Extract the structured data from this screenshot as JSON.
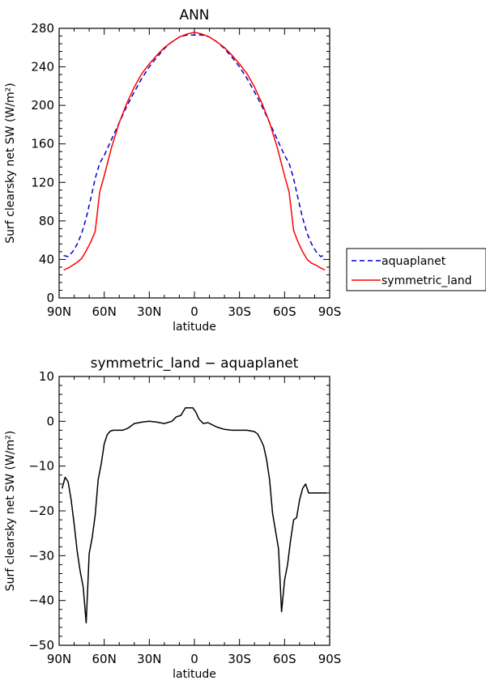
{
  "chart_data": [
    {
      "type": "line",
      "title": "ANN",
      "xlabel": "latitude",
      "ylabel": "Surf clearsky net SW (W/m²)",
      "xlim": [
        -90,
        90
      ],
      "ylim": [
        0,
        280
      ],
      "xticks": [
        -90,
        -60,
        -30,
        0,
        30,
        60,
        90
      ],
      "xtick_labels": [
        "90N",
        "60N",
        "30N",
        "0",
        "30S",
        "60S",
        "90S"
      ],
      "yticks": [
        0,
        40,
        80,
        120,
        160,
        200,
        240,
        280
      ],
      "ytick_labels": [
        "0",
        "40",
        "80",
        "120",
        "160",
        "200",
        "240",
        "280"
      ],
      "grid": false,
      "legend": "outside-right",
      "x": [
        -87,
        -84,
        -81,
        -78,
        -75,
        -72,
        -69,
        -66,
        -63,
        -60,
        -55,
        -50,
        -45,
        -40,
        -35,
        -30,
        -25,
        -20,
        -15,
        -10,
        -5,
        0,
        5,
        10,
        15,
        20,
        25,
        30,
        35,
        40,
        45,
        50,
        55,
        60,
        63,
        66,
        69,
        72,
        75,
        78,
        81,
        84,
        87
      ],
      "series": [
        {
          "name": "aquaplanet",
          "color": "#0000cc",
          "style": "dashed",
          "values": [
            44,
            43,
            48,
            56,
            67,
            83,
            103,
            124,
            140,
            148,
            165,
            182,
            199,
            214,
            228,
            240,
            250,
            259,
            266,
            271,
            273,
            273,
            273,
            271,
            266,
            259,
            250,
            240,
            228,
            214,
            199,
            182,
            165,
            148,
            140,
            124,
            103,
            83,
            67,
            56,
            48,
            43,
            45
          ]
        },
        {
          "name": "symmetric_land",
          "color": "#ff0000",
          "style": "solid",
          "values": [
            29,
            31,
            34,
            37,
            41,
            49,
            58,
            69,
            110,
            127,
            157,
            182,
            202,
            219,
            233,
            243,
            252,
            260,
            266,
            271,
            274,
            276,
            274,
            271,
            266,
            260,
            252,
            243,
            233,
            219,
            202,
            182,
            157,
            127,
            110,
            70,
            58,
            48,
            40,
            36,
            34,
            31,
            29
          ]
        }
      ]
    },
    {
      "type": "line",
      "title": "symmetric_land − aquaplanet",
      "xlabel": "latitude",
      "ylabel": "Surf clearsky net SW (W/m²)",
      "xlim": [
        -90,
        90
      ],
      "ylim": [
        -50,
        10
      ],
      "xticks": [
        -90,
        -60,
        -30,
        0,
        30,
        60,
        90
      ],
      "xtick_labels": [
        "90N",
        "60N",
        "30N",
        "0",
        "30S",
        "60S",
        "90S"
      ],
      "yticks": [
        -50,
        -40,
        -30,
        -20,
        -10,
        0,
        10
      ],
      "ytick_labels": [
        "−50",
        "−40",
        "−30",
        "−20",
        "−10",
        "0",
        "10"
      ],
      "grid": false,
      "x": [
        -88,
        -86,
        -84,
        -82,
        -80,
        -78,
        -76,
        -74,
        -72,
        -70,
        -68,
        -66,
        -64,
        -62,
        -60,
        -58,
        -56,
        -54,
        -52,
        -50,
        -48,
        -46,
        -44,
        -42,
        -40,
        -35,
        -30,
        -25,
        -20,
        -15,
        -12,
        -9,
        -6,
        -3,
        -1,
        1,
        3,
        6,
        9,
        12,
        15,
        20,
        25,
        30,
        35,
        40,
        42,
        44,
        46,
        48,
        50,
        52,
        54,
        56,
        58,
        60,
        62,
        64,
        66,
        68,
        70,
        72,
        74,
        76,
        78,
        80,
        82,
        84,
        86,
        88
      ],
      "series": [
        {
          "name": "",
          "color": "#000000",
          "style": "solid",
          "values": [
            -15,
            -12.5,
            -13.5,
            -17.5,
            -23,
            -29,
            -33.5,
            -37,
            -45,
            -29.5,
            -26,
            -21,
            -13,
            -9.5,
            -5,
            -3,
            -2.2,
            -2,
            -2,
            -2,
            -2,
            -1.8,
            -1.5,
            -1,
            -0.5,
            -0.2,
            0,
            -0.2,
            -0.5,
            0,
            1.0,
            1.3,
            3,
            3,
            3,
            2,
            0.5,
            -0.5,
            -0.3,
            -0.8,
            -1.3,
            -1.8,
            -2,
            -2,
            -2,
            -2.3,
            -2.8,
            -4,
            -5.5,
            -8.5,
            -13,
            -20.5,
            -24.5,
            -28.5,
            -42.5,
            -35.5,
            -32,
            -26.5,
            -22,
            -21.5,
            -17.5,
            -15,
            -14,
            -16,
            -16,
            -16,
            -16,
            -16,
            -16,
            -16
          ]
        }
      ]
    }
  ]
}
